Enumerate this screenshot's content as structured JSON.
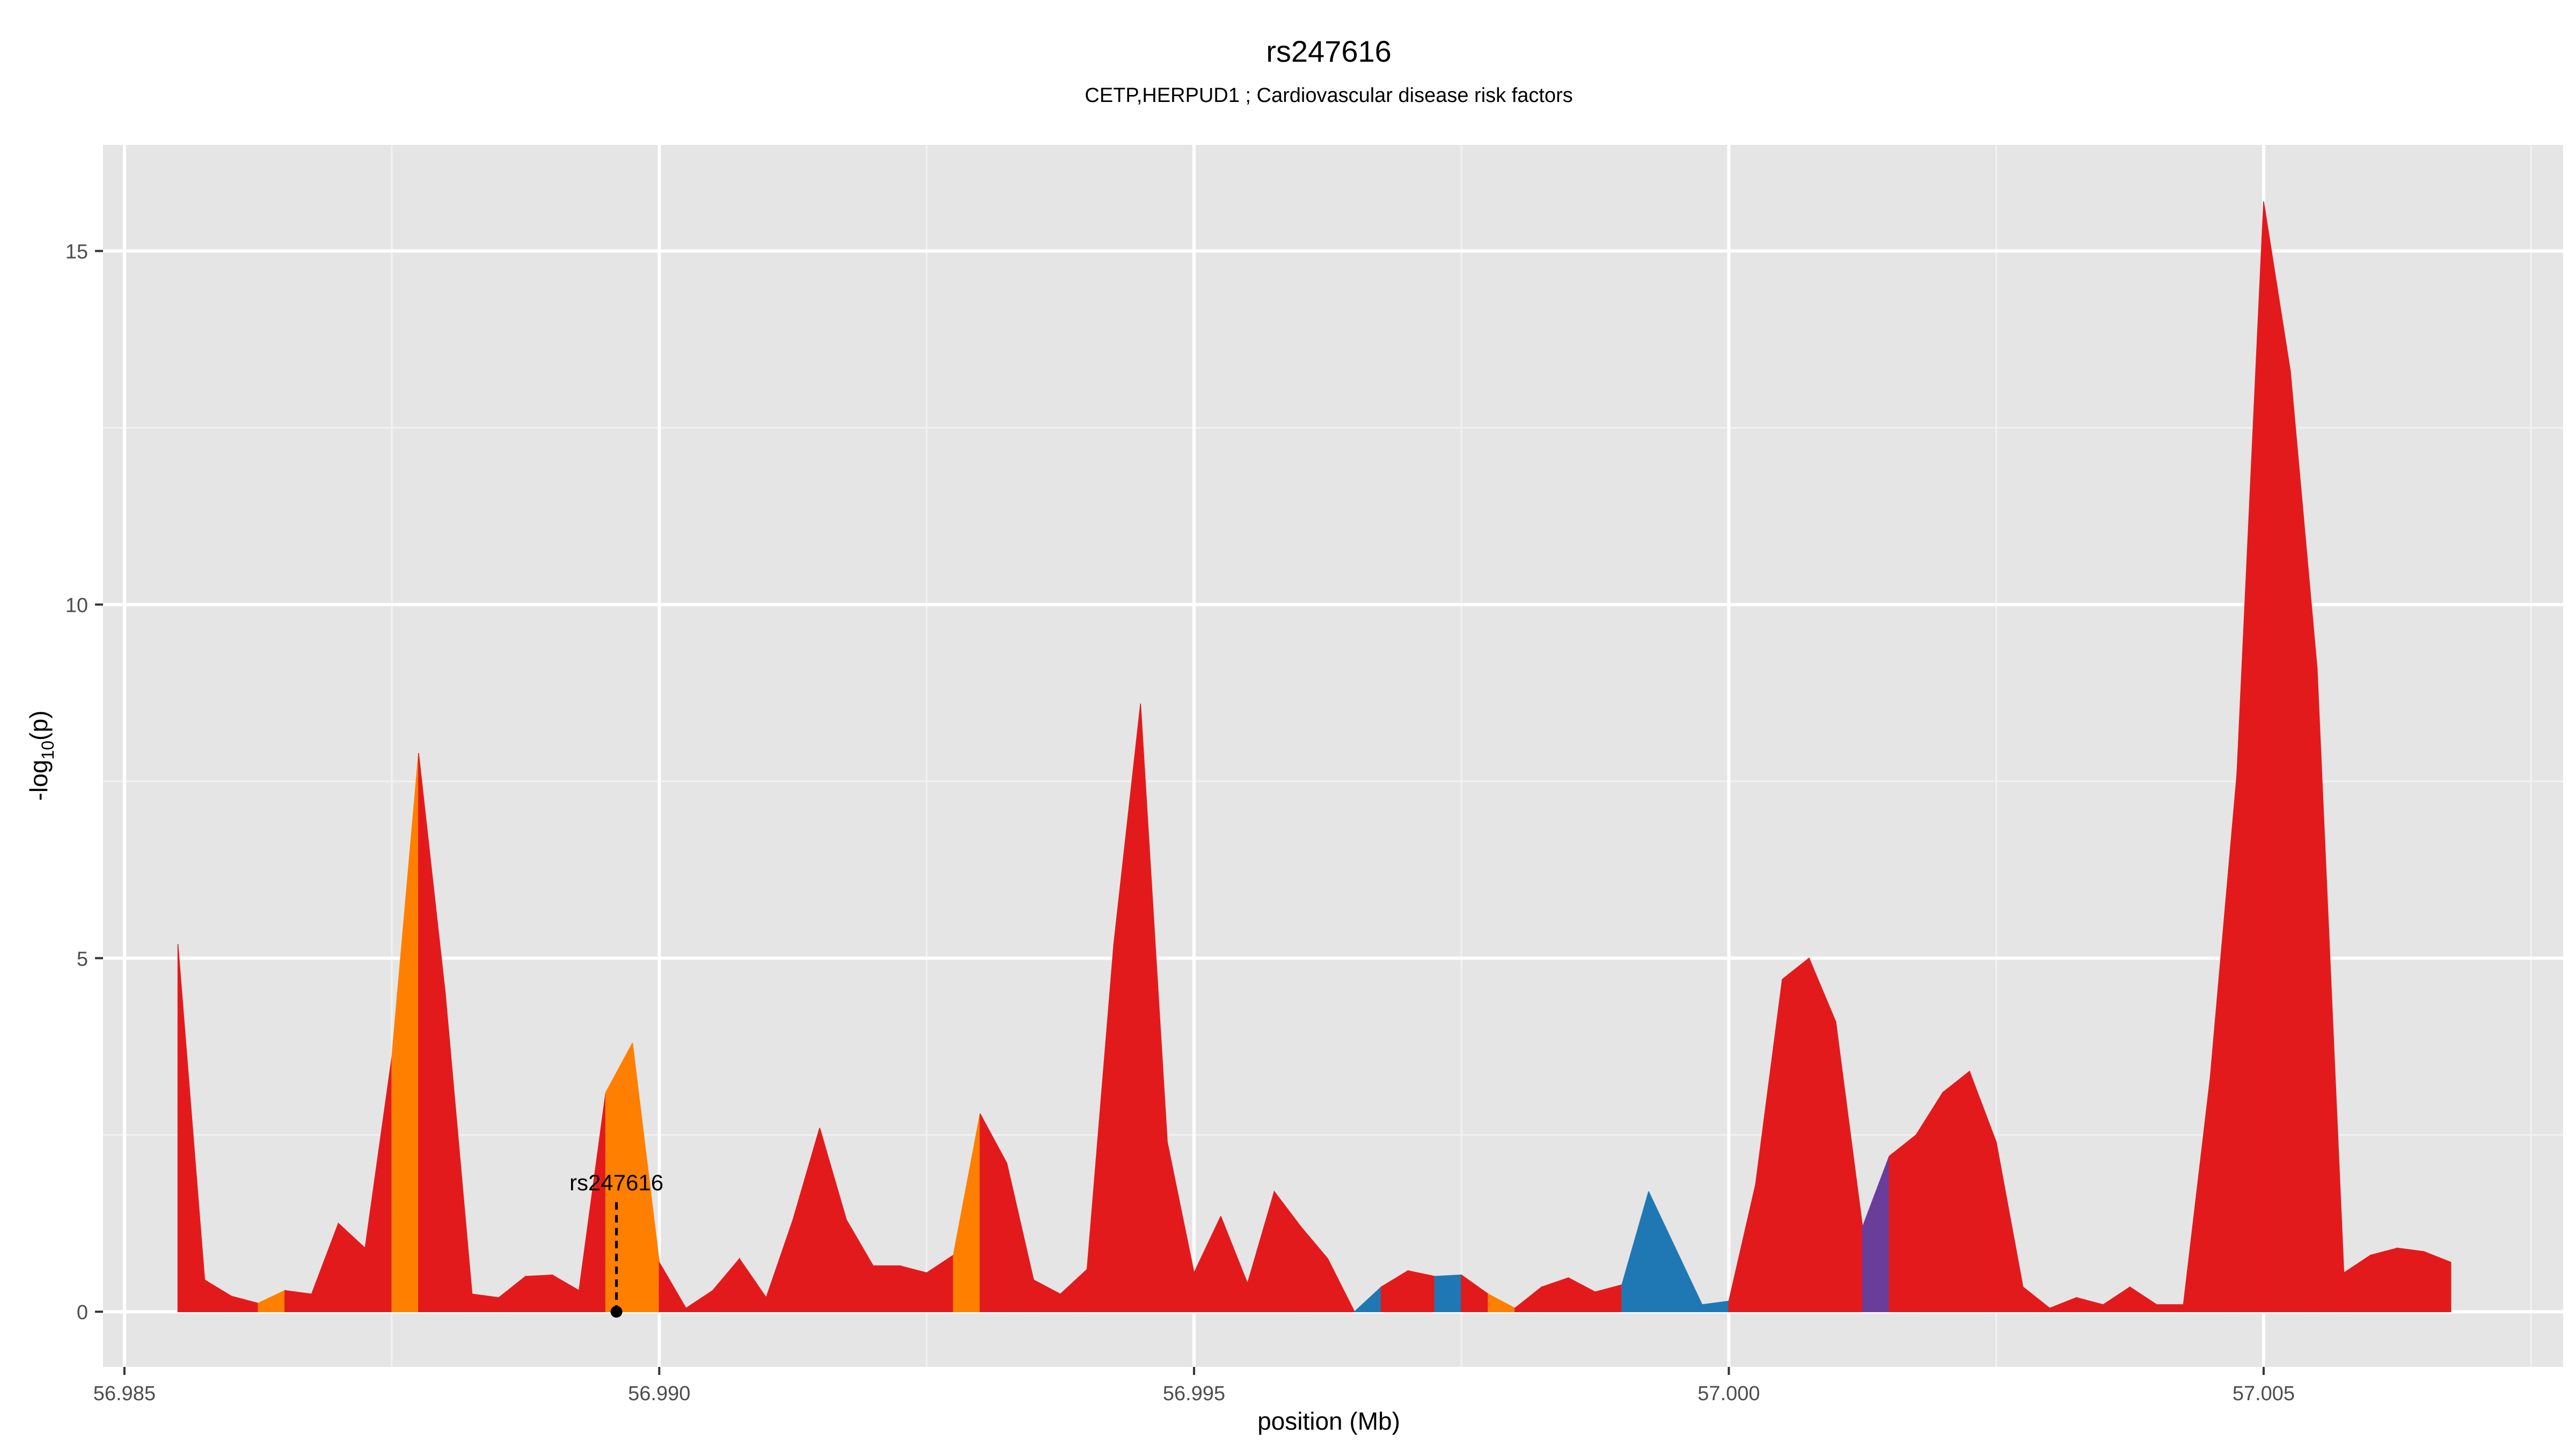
{
  "chart_data": {
    "type": "area",
    "title": "rs247616",
    "subtitle": "CETP,HERPUD1 ; Cardiovascular disease risk factors",
    "xlabel": "position (Mb)",
    "ylabel_main": "-log",
    "ylabel_sub": "10",
    "ylabel_tail": "(p)",
    "xlim": [
      56.9848,
      57.0078
    ],
    "ylim": [
      -0.78,
      16.5
    ],
    "x_ticks": [
      56.985,
      56.99,
      56.995,
      57.0,
      57.005
    ],
    "x_tick_labels": [
      "56.985",
      "56.990",
      "56.995",
      "57.000",
      "57.005"
    ],
    "y_ticks": [
      0,
      5,
      10,
      15
    ],
    "y_tick_labels": [
      "0",
      "5",
      "10",
      "15"
    ],
    "grid": true,
    "annotation": {
      "label": "rs247616",
      "x": 56.9896,
      "y_top": 1.55,
      "y_point": 0
    },
    "colors": {
      "red": "#e31a1c",
      "orange": "#ff7f00",
      "blue": "#1f78b4",
      "purple": "#6a3d9a",
      "panel": "#e5e5e5",
      "grid_major": "#ffffff",
      "grid_minor": "#f2f2f2",
      "tick_text": "#4d4d4d"
    },
    "points": [
      {
        "x": 56.9855,
        "y": 5.2,
        "c": "red"
      },
      {
        "x": 56.98575,
        "y": 0.45,
        "c": "red"
      },
      {
        "x": 56.986,
        "y": 0.22,
        "c": "red"
      },
      {
        "x": 56.98625,
        "y": 0.12,
        "c": "orange"
      },
      {
        "x": 56.9865,
        "y": 0.3,
        "c": "red"
      },
      {
        "x": 56.98675,
        "y": 0.25,
        "c": "red"
      },
      {
        "x": 56.987,
        "y": 1.25,
        "c": "red"
      },
      {
        "x": 56.98725,
        "y": 0.9,
        "c": "red"
      },
      {
        "x": 56.9875,
        "y": 3.6,
        "c": "orange"
      },
      {
        "x": 56.98775,
        "y": 7.9,
        "c": "red"
      },
      {
        "x": 56.988,
        "y": 4.5,
        "c": "red"
      },
      {
        "x": 56.98825,
        "y": 0.25,
        "c": "red"
      },
      {
        "x": 56.9885,
        "y": 0.2,
        "c": "red"
      },
      {
        "x": 56.98875,
        "y": 0.5,
        "c": "red"
      },
      {
        "x": 56.989,
        "y": 0.52,
        "c": "red"
      },
      {
        "x": 56.98925,
        "y": 0.3,
        "c": "red"
      },
      {
        "x": 56.9895,
        "y": 3.1,
        "c": "orange"
      },
      {
        "x": 56.98975,
        "y": 3.8,
        "c": "orange"
      },
      {
        "x": 56.99,
        "y": 0.7,
        "c": "red"
      },
      {
        "x": 56.99025,
        "y": 0.05,
        "c": "red"
      },
      {
        "x": 56.9905,
        "y": 0.3,
        "c": "red"
      },
      {
        "x": 56.99075,
        "y": 0.75,
        "c": "red"
      },
      {
        "x": 56.991,
        "y": 0.2,
        "c": "red"
      },
      {
        "x": 56.99125,
        "y": 1.3,
        "c": "red"
      },
      {
        "x": 56.9915,
        "y": 2.6,
        "c": "red"
      },
      {
        "x": 56.99175,
        "y": 1.3,
        "c": "red"
      },
      {
        "x": 56.992,
        "y": 0.65,
        "c": "red"
      },
      {
        "x": 56.99225,
        "y": 0.65,
        "c": "red"
      },
      {
        "x": 56.9925,
        "y": 0.55,
        "c": "red"
      },
      {
        "x": 56.99275,
        "y": 0.8,
        "c": "orange"
      },
      {
        "x": 56.993,
        "y": 2.8,
        "c": "red"
      },
      {
        "x": 56.99325,
        "y": 2.1,
        "c": "red"
      },
      {
        "x": 56.9935,
        "y": 0.45,
        "c": "red"
      },
      {
        "x": 56.99375,
        "y": 0.25,
        "c": "red"
      },
      {
        "x": 56.994,
        "y": 0.6,
        "c": "red"
      },
      {
        "x": 56.99425,
        "y": 5.2,
        "c": "red"
      },
      {
        "x": 56.9945,
        "y": 8.6,
        "c": "red"
      },
      {
        "x": 56.99475,
        "y": 2.4,
        "c": "red"
      },
      {
        "x": 56.995,
        "y": 0.55,
        "c": "red"
      },
      {
        "x": 56.99525,
        "y": 1.35,
        "c": "red"
      },
      {
        "x": 56.9955,
        "y": 0.4,
        "c": "red"
      },
      {
        "x": 56.99575,
        "y": 1.7,
        "c": "red"
      },
      {
        "x": 56.996,
        "y": 1.2,
        "c": "red"
      },
      {
        "x": 56.99625,
        "y": 0.75,
        "c": "red"
      },
      {
        "x": 56.9965,
        "y": 0.0,
        "c": "blue"
      },
      {
        "x": 56.99675,
        "y": 0.35,
        "c": "red"
      },
      {
        "x": 56.997,
        "y": 0.58,
        "c": "red"
      },
      {
        "x": 56.99725,
        "y": 0.5,
        "c": "blue"
      },
      {
        "x": 56.9975,
        "y": 0.52,
        "c": "red"
      },
      {
        "x": 56.99775,
        "y": 0.25,
        "c": "orange"
      },
      {
        "x": 56.998,
        "y": 0.05,
        "c": "red"
      },
      {
        "x": 56.99825,
        "y": 0.35,
        "c": "red"
      },
      {
        "x": 56.9985,
        "y": 0.48,
        "c": "red"
      },
      {
        "x": 56.99875,
        "y": 0.28,
        "c": "red"
      },
      {
        "x": 56.999,
        "y": 0.38,
        "c": "blue"
      },
      {
        "x": 56.99925,
        "y": 1.7,
        "c": "blue"
      },
      {
        "x": 56.99975,
        "y": 0.1,
        "c": "blue"
      },
      {
        "x": 57.0,
        "y": 0.15,
        "c": "red"
      },
      {
        "x": 57.00025,
        "y": 1.8,
        "c": "red"
      },
      {
        "x": 57.0005,
        "y": 4.7,
        "c": "red"
      },
      {
        "x": 57.00075,
        "y": 5.0,
        "c": "red"
      },
      {
        "x": 57.001,
        "y": 4.1,
        "c": "red"
      },
      {
        "x": 57.00125,
        "y": 1.2,
        "c": "purple"
      },
      {
        "x": 57.0015,
        "y": 2.2,
        "c": "red"
      },
      {
        "x": 57.00175,
        "y": 2.5,
        "c": "red"
      },
      {
        "x": 57.002,
        "y": 3.1,
        "c": "red"
      },
      {
        "x": 57.00225,
        "y": 3.4,
        "c": "red"
      },
      {
        "x": 57.0025,
        "y": 2.4,
        "c": "red"
      },
      {
        "x": 57.00275,
        "y": 0.35,
        "c": "red"
      },
      {
        "x": 57.003,
        "y": 0.05,
        "c": "red"
      },
      {
        "x": 57.00325,
        "y": 0.2,
        "c": "red"
      },
      {
        "x": 57.0035,
        "y": 0.1,
        "c": "red"
      },
      {
        "x": 57.00375,
        "y": 0.35,
        "c": "red"
      },
      {
        "x": 57.004,
        "y": 0.1,
        "c": "red"
      },
      {
        "x": 57.00425,
        "y": 0.1,
        "c": "red"
      },
      {
        "x": 57.0045,
        "y": 3.3,
        "c": "red"
      },
      {
        "x": 57.00475,
        "y": 7.6,
        "c": "red"
      },
      {
        "x": 57.005,
        "y": 15.7,
        "c": "red"
      },
      {
        "x": 57.00525,
        "y": 13.3,
        "c": "red"
      },
      {
        "x": 57.0055,
        "y": 9.1,
        "c": "red"
      },
      {
        "x": 57.00575,
        "y": 0.55,
        "c": "red"
      },
      {
        "x": 57.006,
        "y": 0.8,
        "c": "red"
      },
      {
        "x": 57.00625,
        "y": 0.9,
        "c": "red"
      },
      {
        "x": 57.0065,
        "y": 0.85,
        "c": "red"
      },
      {
        "x": 57.00675,
        "y": 0.7,
        "c": "red"
      }
    ]
  }
}
